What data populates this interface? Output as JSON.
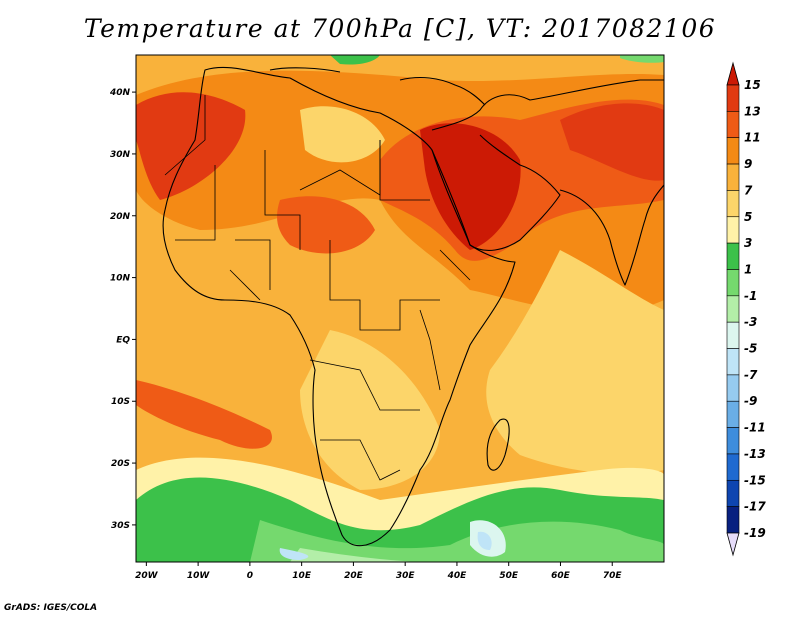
{
  "title": "Temperature at 700hPa [C], VT: 2017082106",
  "credit": "GrADS: IGES/COLA",
  "map": {
    "lon_range": [
      -22,
      80
    ],
    "lat_range": [
      -36,
      46
    ],
    "x_ticks": [
      {
        "value": -20,
        "label": "20W"
      },
      {
        "value": -10,
        "label": "10W"
      },
      {
        "value": 0,
        "label": "0"
      },
      {
        "value": 10,
        "label": "10E"
      },
      {
        "value": 20,
        "label": "20E"
      },
      {
        "value": 30,
        "label": "30E"
      },
      {
        "value": 40,
        "label": "40E"
      },
      {
        "value": 50,
        "label": "50E"
      },
      {
        "value": 60,
        "label": "60E"
      },
      {
        "value": 70,
        "label": "70E"
      }
    ],
    "y_ticks": [
      {
        "value": 40,
        "label": "40N"
      },
      {
        "value": 30,
        "label": "30N"
      },
      {
        "value": 20,
        "label": "20N"
      },
      {
        "value": 10,
        "label": "10N"
      },
      {
        "value": 0,
        "label": "EQ"
      },
      {
        "value": -10,
        "label": "10S"
      },
      {
        "value": -20,
        "label": "20S"
      },
      {
        "value": -30,
        "label": "30S"
      }
    ]
  },
  "colorbar": {
    "labels": [
      "15",
      "13",
      "11",
      "9",
      "7",
      "5",
      "3",
      "1",
      "-1",
      "-3",
      "-5",
      "-7",
      "-9",
      "-11",
      "-13",
      "-15",
      "-17",
      "-19"
    ],
    "colors": [
      "#cc1a05",
      "#e13a12",
      "#ef5b16",
      "#f48a15",
      "#f9b23b",
      "#fcd56a",
      "#fff2a8",
      "#3cc14a",
      "#75d96e",
      "#b3eea8",
      "#dcf6ef",
      "#bfe4f7",
      "#96cbf0",
      "#6aaee6",
      "#3e8ddc",
      "#1f6ad0",
      "#0e45b0",
      "#082080",
      "#e6dcfa"
    ],
    "over_color": "#cc1a05",
    "under_color": "#e6dcfa"
  }
}
